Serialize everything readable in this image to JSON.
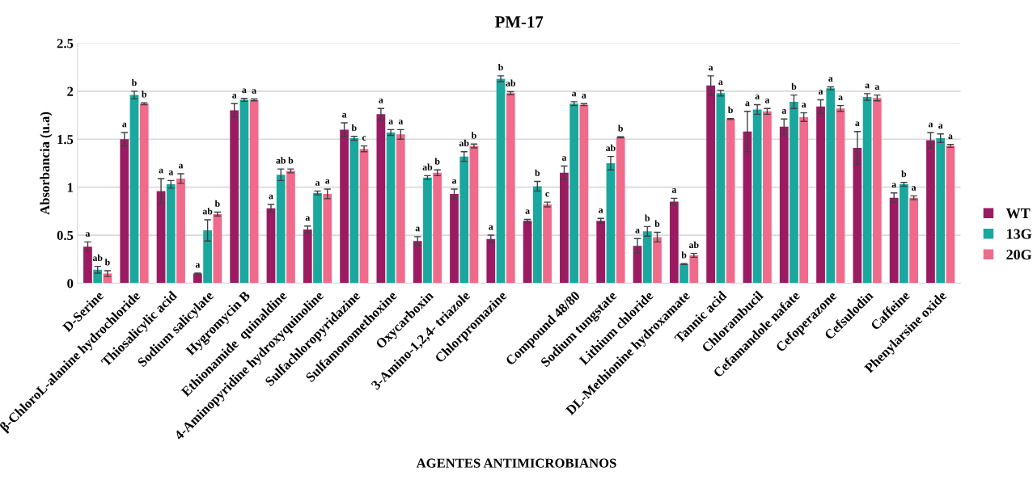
{
  "chart_data": {
    "type": "bar",
    "title": "PM-17",
    "xlabel": "AGENTES ANTIMICROBIANOS",
    "ylabel": "Absorbancia (u.a)",
    "categories": [
      "D-Serine",
      "β-ChloroL-alanine hydrochloride",
      "Thiosalicylic acid",
      "Sodium salicylate",
      "Hygromycin B",
      "Ethionamide  quinaldine",
      "4-Aminopyridine hydroxyquinoline",
      "Sulfachloropyridazine",
      "Sulfamonomethoxine",
      "Oxycarboxin",
      "3-Amino-1,2,4- triazole",
      "Chlorpromazine",
      null,
      "Compound 48/80",
      "Sodium tungstate",
      "Lithium chloride",
      "DL-Methionine hydroxamate",
      "Tannic acid",
      "Chlorambucil",
      "Cefamandole nafate",
      "Cefoperazone",
      "Cefsulodin",
      "Caffeine",
      "Phenylarsine oxide"
    ],
    "series": [
      {
        "name": "WT",
        "color": "#9b1b63",
        "values": [
          0.38,
          1.5,
          0.96,
          0.1,
          1.8,
          0.78,
          0.56,
          1.6,
          1.76,
          0.44,
          0.93,
          0.46,
          0.65,
          1.15,
          0.65,
          0.39,
          0.85,
          2.06,
          1.58,
          1.63,
          1.84,
          1.41,
          0.89,
          1.49
        ],
        "errors": [
          0.05,
          0.07,
          0.13,
          0.005,
          0.07,
          0.04,
          0.035,
          0.07,
          0.06,
          0.045,
          0.05,
          0.04,
          0.015,
          0.07,
          0.025,
          0.075,
          0.035,
          0.1,
          0.21,
          0.08,
          0.07,
          0.17,
          0.05,
          0.08
        ],
        "value_labels": [
          "a",
          "a",
          "a",
          "a",
          "a",
          "a",
          "a",
          "a",
          "a",
          "a",
          "a",
          "a",
          "a",
          "a",
          "a",
          "a",
          "a",
          "a",
          "a",
          "a",
          "a",
          "a",
          "a",
          "a"
        ]
      },
      {
        "name": "13G",
        "color": "#1aa89e",
        "values": [
          0.14,
          1.96,
          1.03,
          0.55,
          1.91,
          1.13,
          0.94,
          1.51,
          1.57,
          1.1,
          1.32,
          2.13,
          1.01,
          1.87,
          1.25,
          0.54,
          0.2,
          1.98,
          1.81,
          1.89,
          2.03,
          1.94,
          1.03,
          1.51
        ],
        "errors": [
          0.035,
          0.04,
          0.04,
          0.11,
          0.015,
          0.06,
          0.02,
          0.02,
          0.03,
          0.02,
          0.05,
          0.03,
          0.05,
          0.02,
          0.07,
          0.05,
          0.005,
          0.03,
          0.05,
          0.07,
          0.015,
          0.035,
          0.02,
          0.045
        ],
        "value_labels": [
          "ab",
          "b",
          "a",
          "ab",
          "a",
          "ab",
          "a",
          "b",
          "a",
          "ab",
          "ab",
          "b",
          "b",
          "a",
          "ab",
          "b",
          "b",
          "a",
          "a",
          "b",
          "a",
          "a",
          "b",
          "a"
        ]
      },
      {
        "name": "20G",
        "color": "#f06b8b",
        "values": [
          0.1,
          1.87,
          1.09,
          0.72,
          1.91,
          1.17,
          0.93,
          1.4,
          1.55,
          1.15,
          1.43,
          1.98,
          0.82,
          1.86,
          1.52,
          0.48,
          0.29,
          1.71,
          1.79,
          1.73,
          1.82,
          1.93,
          0.89,
          1.43
        ],
        "errors": [
          0.03,
          0.01,
          0.05,
          0.02,
          0.01,
          0.02,
          0.05,
          0.03,
          0.05,
          0.03,
          0.02,
          0.015,
          0.025,
          0.01,
          0.005,
          0.05,
          0.02,
          0.005,
          0.03,
          0.045,
          0.03,
          0.03,
          0.02,
          0.015
        ],
        "value_labels": [
          "b",
          "b",
          "a",
          "b",
          "a",
          "b",
          "a",
          "c",
          "a",
          "b",
          "b",
          "ab",
          "c",
          "a",
          "b",
          "b",
          "ab",
          "b",
          "a",
          "a",
          "a",
          "a",
          "a",
          "a"
        ]
      }
    ],
    "ylim": [
      0,
      2.5
    ],
    "yticks": [
      0,
      0.5,
      1,
      1.5,
      2,
      2.5
    ],
    "grid": "y",
    "legend": "right"
  }
}
